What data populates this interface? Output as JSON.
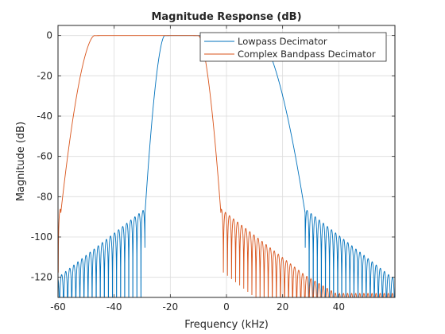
{
  "chart_data": {
    "type": "line",
    "title": "Magnitude Response (dB)",
    "xlabel": "Frequency (kHz)",
    "ylabel": "Magnitude (dB)",
    "xlim": [
      -60,
      60
    ],
    "ylim": [
      -130,
      5
    ],
    "xticks": [
      -60,
      -40,
      -20,
      0,
      20,
      40
    ],
    "yticks": [
      0,
      -20,
      -40,
      -60,
      -80,
      -100,
      -120
    ],
    "grid": true,
    "legend_position": "top-right",
    "series": [
      {
        "name": "Lowpass Decimator",
        "color": "#0072BD",
        "passband": [
          -22,
          11
        ],
        "transition_low": [
          -29,
          -22
        ],
        "transition_high": [
          11,
          28
        ],
        "stopbands": [
          [
            -60,
            -29
          ],
          [
            28,
            60
          ]
        ],
        "stopband_peak_db": -86,
        "stopband_floor_db": -120,
        "peak_db": 0,
        "peak_freq": -16
      },
      {
        "name": "Complex Bandpass Decimator",
        "color": "#D95319",
        "passband": [
          -47,
          -10
        ],
        "transition_low": [
          -59,
          -47
        ],
        "transition_high": [
          -10,
          -2
        ],
        "stopbands": [
          [
            -60,
            -59
          ],
          [
            -2,
            60
          ]
        ],
        "stopband_peak_db": -86,
        "stopband_floor_db": -120,
        "peak_db": 0,
        "peak_freq": -16
      }
    ]
  }
}
